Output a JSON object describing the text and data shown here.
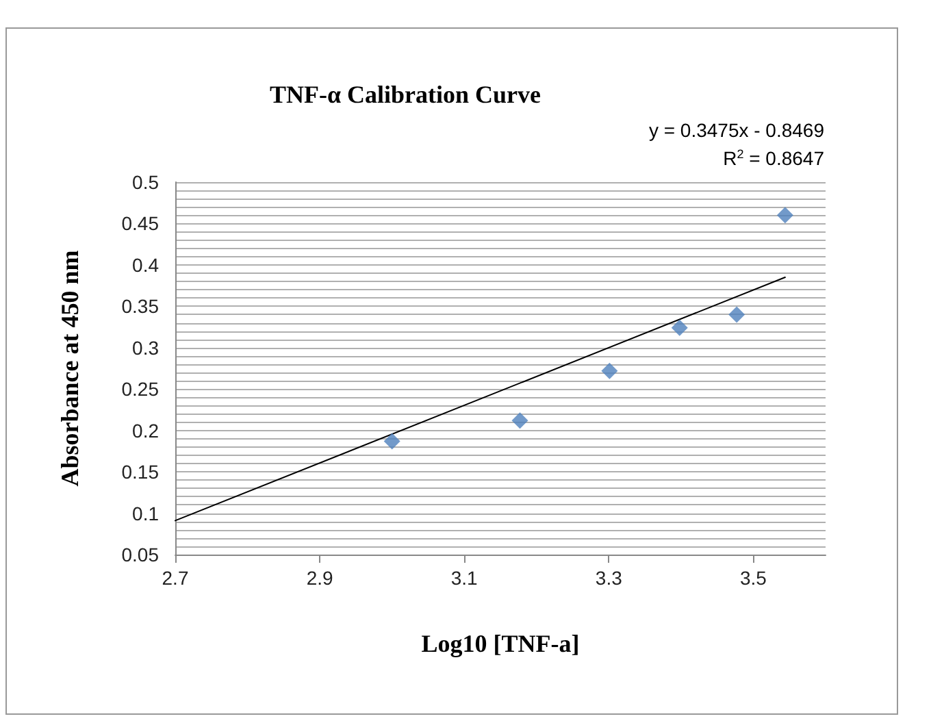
{
  "chart_data": {
    "type": "scatter",
    "title": "TNF-α Calibration Curve",
    "xlabel": "Log10 [TNF-a]",
    "ylabel": "Absorbance at 450 nm",
    "annotations": [
      "y = 0.3475x - 0.8469",
      "R$^{2}$ = 0.8647"
    ],
    "series": [
      {
        "color": "#4f81bd",
        "x": [
          3.0,
          3.177,
          3.301,
          3.398,
          3.477,
          3.544
        ],
        "values": [
          0.187,
          0.212,
          0.272,
          0.324,
          0.34,
          0.46
        ],
        "marker": "diamond"
      },
      {
        "type": "line",
        "color": "#000000",
        "x": [
          2.7,
          3.544
        ],
        "values": [
          0.091,
          0.385
        ],
        "marker": "none",
        "line_style": "solid"
      }
    ],
    "xlim": [
      2.7,
      3.6
    ],
    "xticks": [
      2.7,
      2.9,
      3.1,
      3.3,
      3.5
    ],
    "ylim": [
      0.05,
      0.5
    ],
    "yticks": [
      0.05,
      {
        "value": 0.06,
        "label": null
      },
      {
        "value": 0.07,
        "label": null
      },
      {
        "value": 0.08,
        "label": null
      },
      {
        "value": 0.09,
        "label": null
      },
      0.1,
      {
        "value": 0.11,
        "label": null
      },
      {
        "value": 0.12,
        "label": null
      },
      {
        "value": 0.13,
        "label": null
      },
      {
        "value": 0.14,
        "label": null
      },
      0.15,
      {
        "value": 0.16,
        "label": null
      },
      {
        "value": 0.17,
        "label": null
      },
      {
        "value": 0.18,
        "label": null
      },
      {
        "value": 0.19,
        "label": null
      },
      0.2,
      {
        "value": 0.21,
        "label": null
      },
      {
        "value": 0.22,
        "label": null
      },
      {
        "value": 0.23,
        "label": null
      },
      {
        "value": 0.24,
        "label": null
      },
      0.25,
      {
        "value": 0.26,
        "label": null
      },
      {
        "value": 0.27,
        "label": null
      },
      {
        "value": 0.28,
        "label": null
      },
      {
        "value": 0.29,
        "label": null
      },
      0.3,
      {
        "value": 0.31,
        "label": null
      },
      {
        "value": 0.32,
        "label": null
      },
      {
        "value": 0.33,
        "label": null
      },
      {
        "value": 0.34,
        "label": null
      },
      0.35,
      {
        "value": 0.36,
        "label": null
      },
      {
        "value": 0.37,
        "label": null
      },
      {
        "value": 0.38,
        "label": null
      },
      {
        "value": 0.39,
        "label": null
      },
      0.4,
      {
        "value": 0.41,
        "label": null
      },
      {
        "value": 0.42,
        "label": null
      },
      {
        "value": 0.43,
        "label": null
      },
      {
        "value": 0.44,
        "label": null
      },
      0.45,
      {
        "value": 0.46,
        "label": null
      },
      {
        "value": 0.47,
        "label": null
      },
      {
        "value": 0.48,
        "label": null
      },
      {
        "value": 0.49,
        "label": null
      },
      0.5
    ],
    "grid": "y"
  }
}
